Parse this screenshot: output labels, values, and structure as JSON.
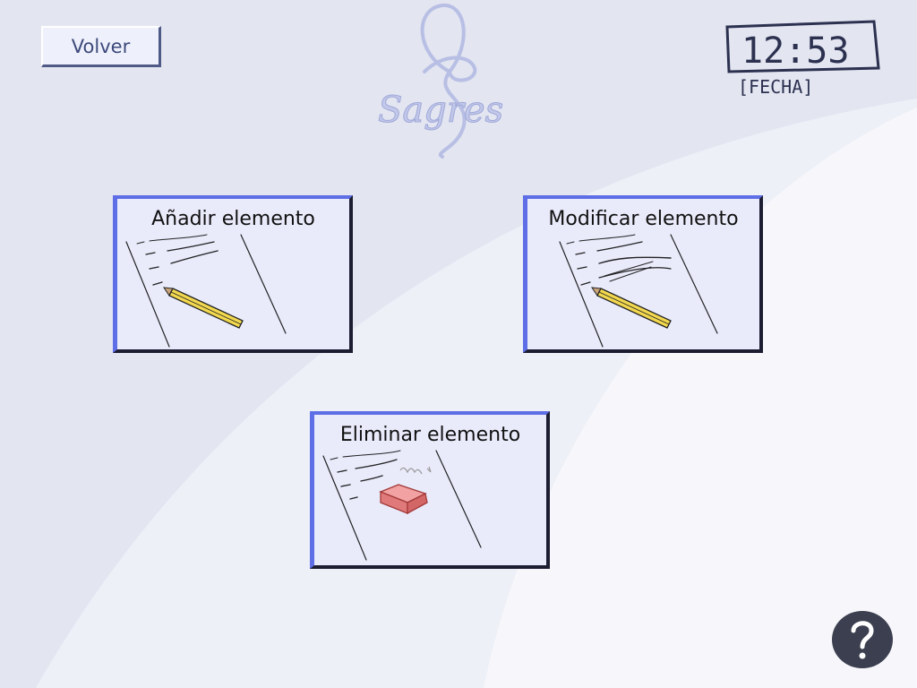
{
  "header": {
    "back_label": "Volver",
    "logo_text": "Sagres",
    "clock_time": "12:53",
    "clock_date": "[FECHA]"
  },
  "menu": {
    "items": [
      {
        "label": "Añadir elemento",
        "icon": "paper-pencil-icon"
      },
      {
        "label": "Modificar elemento",
        "icon": "paper-pencil-scribble-icon"
      },
      {
        "label": "Eliminar elemento",
        "icon": "paper-eraser-icon"
      }
    ]
  },
  "help": {
    "icon": "question-mark-icon"
  },
  "colors": {
    "background": "#e3e5f1",
    "card_fill": "#e9ebfb",
    "card_border_light": "#5d6ee6",
    "card_border_dark": "#1d1d32",
    "help_bg": "#3b3f4f"
  }
}
